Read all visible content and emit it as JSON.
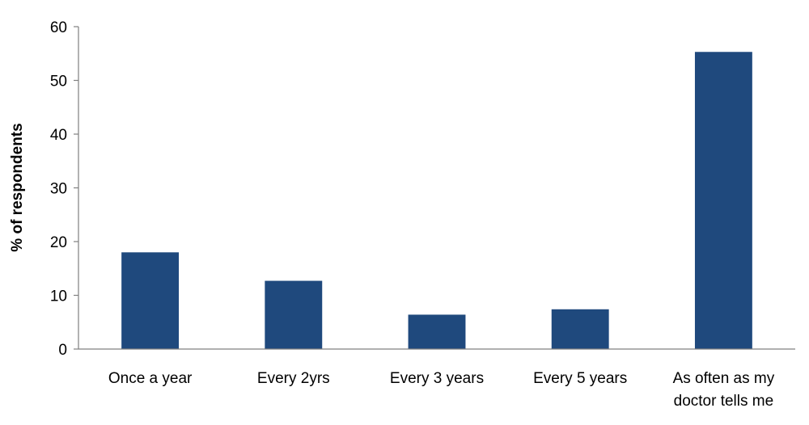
{
  "chart_data": {
    "type": "bar",
    "title": "",
    "xlabel": "",
    "ylabel": "% of respondents",
    "ylim": [
      0,
      60
    ],
    "yticks": [
      0,
      10,
      20,
      30,
      40,
      50,
      60
    ],
    "grid": false,
    "legend": "none",
    "bar_color": "#1f497d",
    "categories": [
      [
        "Once a year"
      ],
      [
        "Every 2yrs"
      ],
      [
        "Every 3 years"
      ],
      [
        "Every 5 years"
      ],
      [
        "As often as my",
        "doctor tells me"
      ]
    ],
    "values": [
      18,
      12.7,
      6.4,
      7.4,
      55.3
    ]
  }
}
